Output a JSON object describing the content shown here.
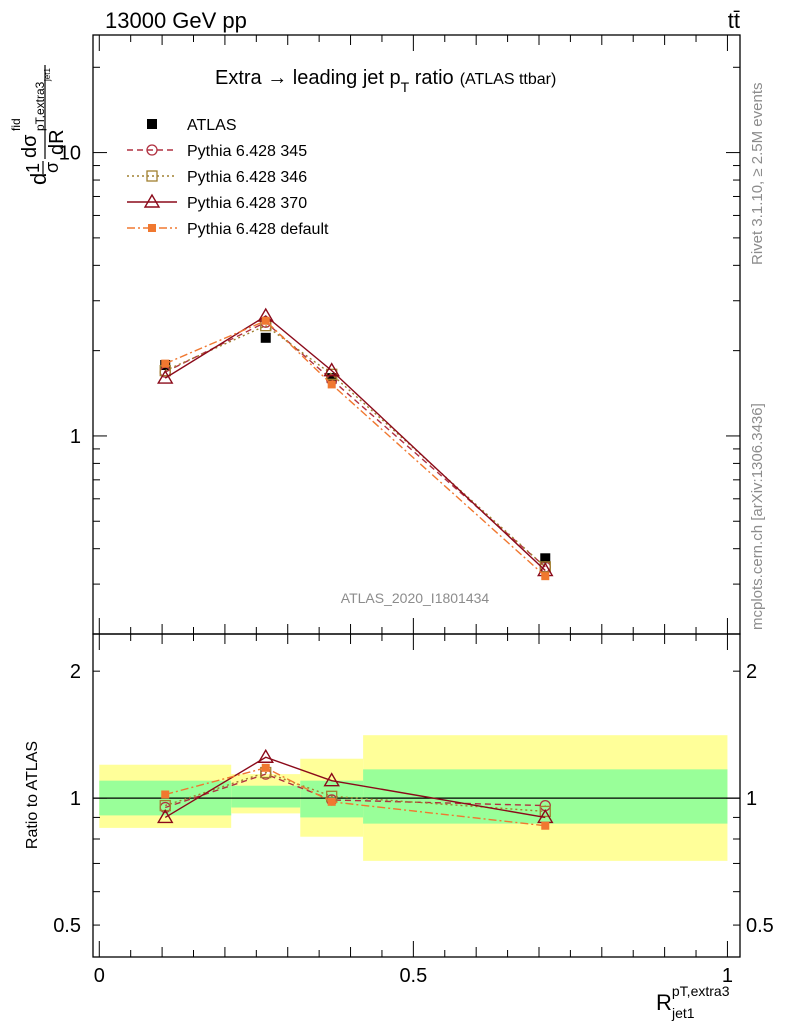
{
  "header": {
    "energy": "13000 GeV pp",
    "process": "tt̄"
  },
  "side_labels": {
    "rivet": "Rivet 3.1.10, ≥ 2.5M events",
    "mcplots": "mcplots.cern.ch [arXiv:1306.3436]"
  },
  "analysis_id": "ATLAS_2020_I1801434",
  "colors": {
    "data": "#000000",
    "p345": "#b03040",
    "p346": "#a08030",
    "p370": "#8b0a1a",
    "pdefault": "#f07830",
    "band_inner": "#99ff99",
    "band_outer": "#ffff99"
  },
  "chart_data": [
    {
      "type": "line",
      "panel": "main",
      "title": "Extra → leading jet pT ratio",
      "title_parts": {
        "pre": "Extra → leading jet p",
        "sub": "T",
        "post": " ratio",
        "note": "(ATLAS ttbar)"
      },
      "ylabel": "d1/σ dσ^fid_{pT,extra3/jet1}/dR",
      "ylabel_parts": {
        "a": "d",
        "b": "1",
        "c": "σ",
        "d": "dσ",
        "e": "fid",
        "f": "pT,extra3",
        "g": "jet1",
        "h": "dR"
      },
      "yscale": "log",
      "ylim": [
        0.2,
        26
      ],
      "xlim": [
        -0.01,
        1.02
      ],
      "yticks": [
        {
          "v": 1,
          "label": "1"
        },
        {
          "v": 10,
          "label": "10"
        }
      ],
      "legend": {
        "position": "top-left",
        "entries": [
          {
            "key": "data",
            "label": "ATLAS"
          },
          {
            "key": "p345",
            "label": "Pythia 6.428 345"
          },
          {
            "key": "p346",
            "label": "Pythia 6.428 346"
          },
          {
            "key": "p370",
            "label": "Pythia 6.428 370"
          },
          {
            "key": "pdefault",
            "label": "Pythia 6.428 default"
          }
        ]
      },
      "x": [
        0.105,
        0.265,
        0.37,
        0.71
      ],
      "series": [
        {
          "key": "data",
          "name": "ATLAS",
          "values": [
            1.78,
            2.22,
            1.6,
            0.37
          ]
        },
        {
          "key": "p345",
          "name": "Pythia 6.428 345",
          "values": [
            1.68,
            2.52,
            1.58,
            0.345
          ]
        },
        {
          "key": "p346",
          "name": "Pythia 6.428 346",
          "values": [
            1.7,
            2.45,
            1.65,
            0.345
          ]
        },
        {
          "key": "p370",
          "name": "Pythia 6.428 370",
          "values": [
            1.6,
            2.65,
            1.7,
            0.335
          ]
        },
        {
          "key": "pdefault",
          "name": "Pythia 6.428 default",
          "values": [
            1.8,
            2.55,
            1.52,
            0.32
          ]
        }
      ]
    },
    {
      "type": "line",
      "panel": "ratio",
      "ylabel": "Ratio to ATLAS",
      "xlabel": "R^{pT,extra3}_{jet1}",
      "xlabel_parts": {
        "base": "R",
        "sup": "pT,extra3",
        "sub": "jet1"
      },
      "yscale": "log",
      "ylim": [
        0.42,
        2.45
      ],
      "xlim": [
        -0.01,
        1.02
      ],
      "xticks": [
        {
          "v": 0,
          "label": "0"
        },
        {
          "v": 0.5,
          "label": "0.5"
        },
        {
          "v": 1,
          "label": "1"
        }
      ],
      "yticks": [
        {
          "v": 0.5,
          "label": "0.5"
        },
        {
          "v": 1,
          "label": "1"
        },
        {
          "v": 2,
          "label": "2"
        }
      ],
      "bands": [
        {
          "x0": 0.0,
          "x1": 0.21,
          "inner": [
            0.91,
            1.1
          ],
          "outer": [
            0.85,
            1.2
          ]
        },
        {
          "x0": 0.21,
          "x1": 0.32,
          "inner": [
            0.95,
            1.07
          ],
          "outer": [
            0.92,
            1.14
          ]
        },
        {
          "x0": 0.32,
          "x1": 0.42,
          "inner": [
            0.9,
            1.1
          ],
          "outer": [
            0.81,
            1.24
          ]
        },
        {
          "x0": 0.42,
          "x1": 1.0,
          "inner": [
            0.87,
            1.17
          ],
          "outer": [
            0.71,
            1.41
          ]
        }
      ],
      "x": [
        0.105,
        0.265,
        0.37,
        0.71
      ],
      "series": [
        {
          "key": "p345",
          "name": "Pythia 6.428 345",
          "values": [
            0.95,
            1.14,
            0.99,
            0.96
          ]
        },
        {
          "key": "p346",
          "name": "Pythia 6.428 346",
          "values": [
            0.96,
            1.15,
            1.01,
            0.93
          ]
        },
        {
          "key": "p370",
          "name": "Pythia 6.428 370",
          "values": [
            0.9,
            1.25,
            1.1,
            0.9
          ]
        },
        {
          "key": "pdefault",
          "name": "Pythia 6.428 default",
          "values": [
            1.02,
            1.18,
            0.98,
            0.86
          ]
        }
      ]
    }
  ]
}
